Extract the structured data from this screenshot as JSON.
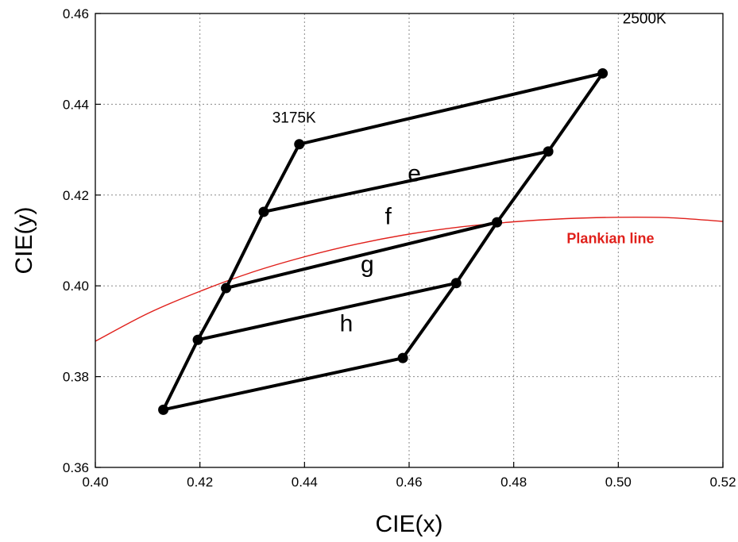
{
  "chart_data": {
    "type": "scatter",
    "xlabel": "CIE(x)",
    "ylabel": "CIE(y)",
    "xlim": [
      0.4,
      0.52
    ],
    "ylim": [
      0.36,
      0.46
    ],
    "x_ticks": [
      "0.40",
      "0.42",
      "0.44",
      "0.46",
      "0.48",
      "0.50",
      "0.52"
    ],
    "y_ticks": [
      "0.36",
      "0.38",
      "0.40",
      "0.42",
      "0.44",
      "0.46"
    ],
    "grid": true,
    "points": [
      {
        "x": 0.439,
        "y": 0.4312
      },
      {
        "x": 0.497,
        "y": 0.4468
      },
      {
        "x": 0.4322,
        "y": 0.4163
      },
      {
        "x": 0.4866,
        "y": 0.4296
      },
      {
        "x": 0.425,
        "y": 0.3995
      },
      {
        "x": 0.4768,
        "y": 0.414
      },
      {
        "x": 0.4196,
        "y": 0.3881
      },
      {
        "x": 0.469,
        "y": 0.4006
      },
      {
        "x": 0.413,
        "y": 0.3727
      },
      {
        "x": 0.4588,
        "y": 0.3841
      }
    ],
    "segments": [
      [
        0,
        1
      ],
      [
        2,
        3
      ],
      [
        4,
        5
      ],
      [
        6,
        7
      ],
      [
        8,
        9
      ],
      [
        0,
        2
      ],
      [
        2,
        4
      ],
      [
        4,
        6
      ],
      [
        6,
        8
      ],
      [
        1,
        3
      ],
      [
        3,
        5
      ],
      [
        5,
        7
      ],
      [
        7,
        9
      ]
    ],
    "region_labels": [
      {
        "text": "e",
        "x": 0.461,
        "y": 0.423
      },
      {
        "text": "f",
        "x": 0.456,
        "y": 0.4136
      },
      {
        "text": "g",
        "x": 0.452,
        "y": 0.403
      },
      {
        "text": "h",
        "x": 0.448,
        "y": 0.39
      }
    ],
    "point_labels": [
      {
        "text": "3175K",
        "x": 0.438,
        "y": 0.436
      },
      {
        "text": "2500K",
        "x": 0.505,
        "y": 0.4578
      }
    ],
    "curve": {
      "name": "Plankian line",
      "color": "#e0201b",
      "x": [
        0.4,
        0.41,
        0.42,
        0.43,
        0.44,
        0.45,
        0.46,
        0.47,
        0.48,
        0.49,
        0.5,
        0.51,
        0.52
      ],
      "y": [
        0.3878,
        0.3939,
        0.3988,
        0.403,
        0.4064,
        0.4092,
        0.4114,
        0.413,
        0.4141,
        0.4148,
        0.4151,
        0.415,
        0.4142
      ],
      "label_x": 0.4985,
      "label_y": 0.4094
    }
  }
}
